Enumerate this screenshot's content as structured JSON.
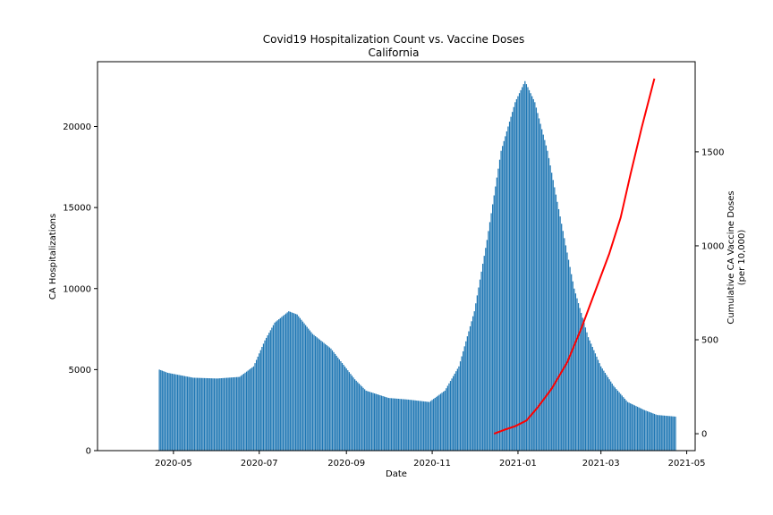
{
  "chart_data": {
    "type": "bar",
    "title": "Covid19 Hospitalization Count vs. Vaccine Doses",
    "subtitle": "California",
    "xlabel": "Date",
    "ylabel": "CA Hospitalizations",
    "y2label_line1": "Cumulative CA Vaccine Doses",
    "y2label_line2": "(per 10,000)",
    "x_ticks": [
      "2020-05",
      "2020-07",
      "2020-09",
      "2020-11",
      "2021-01",
      "2021-03",
      "2021-05"
    ],
    "y_ticks": [
      "0",
      "5000",
      "10000",
      "15000",
      "20000"
    ],
    "y2_ticks": [
      "0",
      "500",
      "1000",
      "1500"
    ],
    "xlim": [
      "2020-03-08",
      "2021-05-07"
    ],
    "ylim": [
      0,
      24000
    ],
    "y2lim": [
      -90,
      1980
    ],
    "grid": false,
    "bar_color": "#1f77b4",
    "line_color": "#ff0000",
    "hospitalization_series": {
      "name": "CA Hospitalizations",
      "points": [
        [
          "2020-04-21",
          5000
        ],
        [
          "2020-04-27",
          4800
        ],
        [
          "2020-05-15",
          4500
        ],
        [
          "2020-06-01",
          4450
        ],
        [
          "2020-06-17",
          4550
        ],
        [
          "2020-06-27",
          5200
        ],
        [
          "2020-07-05",
          6800
        ],
        [
          "2020-07-12",
          7900
        ],
        [
          "2020-07-22",
          8600
        ],
        [
          "2020-07-28",
          8400
        ],
        [
          "2020-08-08",
          7200
        ],
        [
          "2020-08-21",
          6300
        ],
        [
          "2020-09-07",
          4400
        ],
        [
          "2020-09-15",
          3700
        ],
        [
          "2020-10-01",
          3250
        ],
        [
          "2020-10-15",
          3150
        ],
        [
          "2020-10-30",
          3000
        ],
        [
          "2020-11-10",
          3700
        ],
        [
          "2020-11-20",
          5200
        ],
        [
          "2020-12-01",
          8600
        ],
        [
          "2020-12-10",
          13000
        ],
        [
          "2020-12-20",
          18500
        ],
        [
          "2020-12-30",
          21500
        ],
        [
          "2021-01-06",
          22800
        ],
        [
          "2021-01-13",
          21500
        ],
        [
          "2021-01-22",
          18500
        ],
        [
          "2021-02-01",
          14000
        ],
        [
          "2021-02-10",
          10000
        ],
        [
          "2021-02-20",
          7000
        ],
        [
          "2021-03-01",
          5200
        ],
        [
          "2021-03-10",
          4000
        ],
        [
          "2021-03-20",
          3000
        ],
        [
          "2021-04-01",
          2500
        ],
        [
          "2021-04-10",
          2200
        ],
        [
          "2021-04-23",
          2100
        ]
      ]
    },
    "vaccine_series": {
      "name": "Cumulative CA Vaccine Doses (per 10,000)",
      "points": [
        [
          "2020-12-15",
          0
        ],
        [
          "2020-12-22",
          20
        ],
        [
          "2020-12-30",
          40
        ],
        [
          "2021-01-07",
          70
        ],
        [
          "2021-01-15",
          140
        ],
        [
          "2021-01-25",
          240
        ],
        [
          "2021-02-05",
          380
        ],
        [
          "2021-02-15",
          560
        ],
        [
          "2021-02-25",
          760
        ],
        [
          "2021-03-07",
          960
        ],
        [
          "2021-03-15",
          1150
        ],
        [
          "2021-03-22",
          1380
        ],
        [
          "2021-03-30",
          1630
        ],
        [
          "2021-04-08",
          1890
        ]
      ]
    }
  }
}
